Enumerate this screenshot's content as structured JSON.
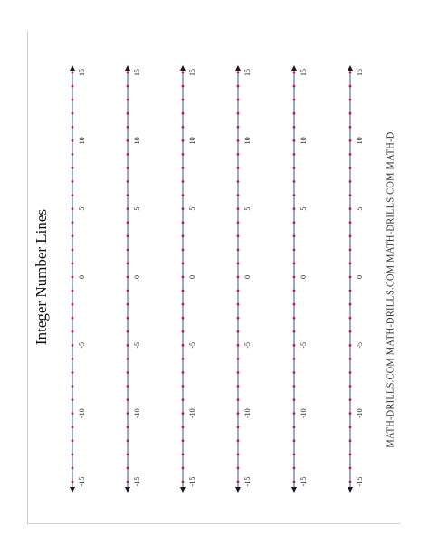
{
  "title": "Integer Number Lines",
  "watermark": "MATH-DRILLS.COM  MATH-DRILLS.COM  MATH-DRILLS.COM  MATH-D",
  "number_line": {
    "min": -15,
    "max": 15,
    "step": 1,
    "labels": [
      "-15",
      "-10",
      "-5",
      "0",
      "5",
      "10",
      "15"
    ],
    "count": 6
  },
  "colors": {
    "line": "#6b7fa3",
    "tick": "#c2185b",
    "arrow": "#1a1a1a"
  }
}
